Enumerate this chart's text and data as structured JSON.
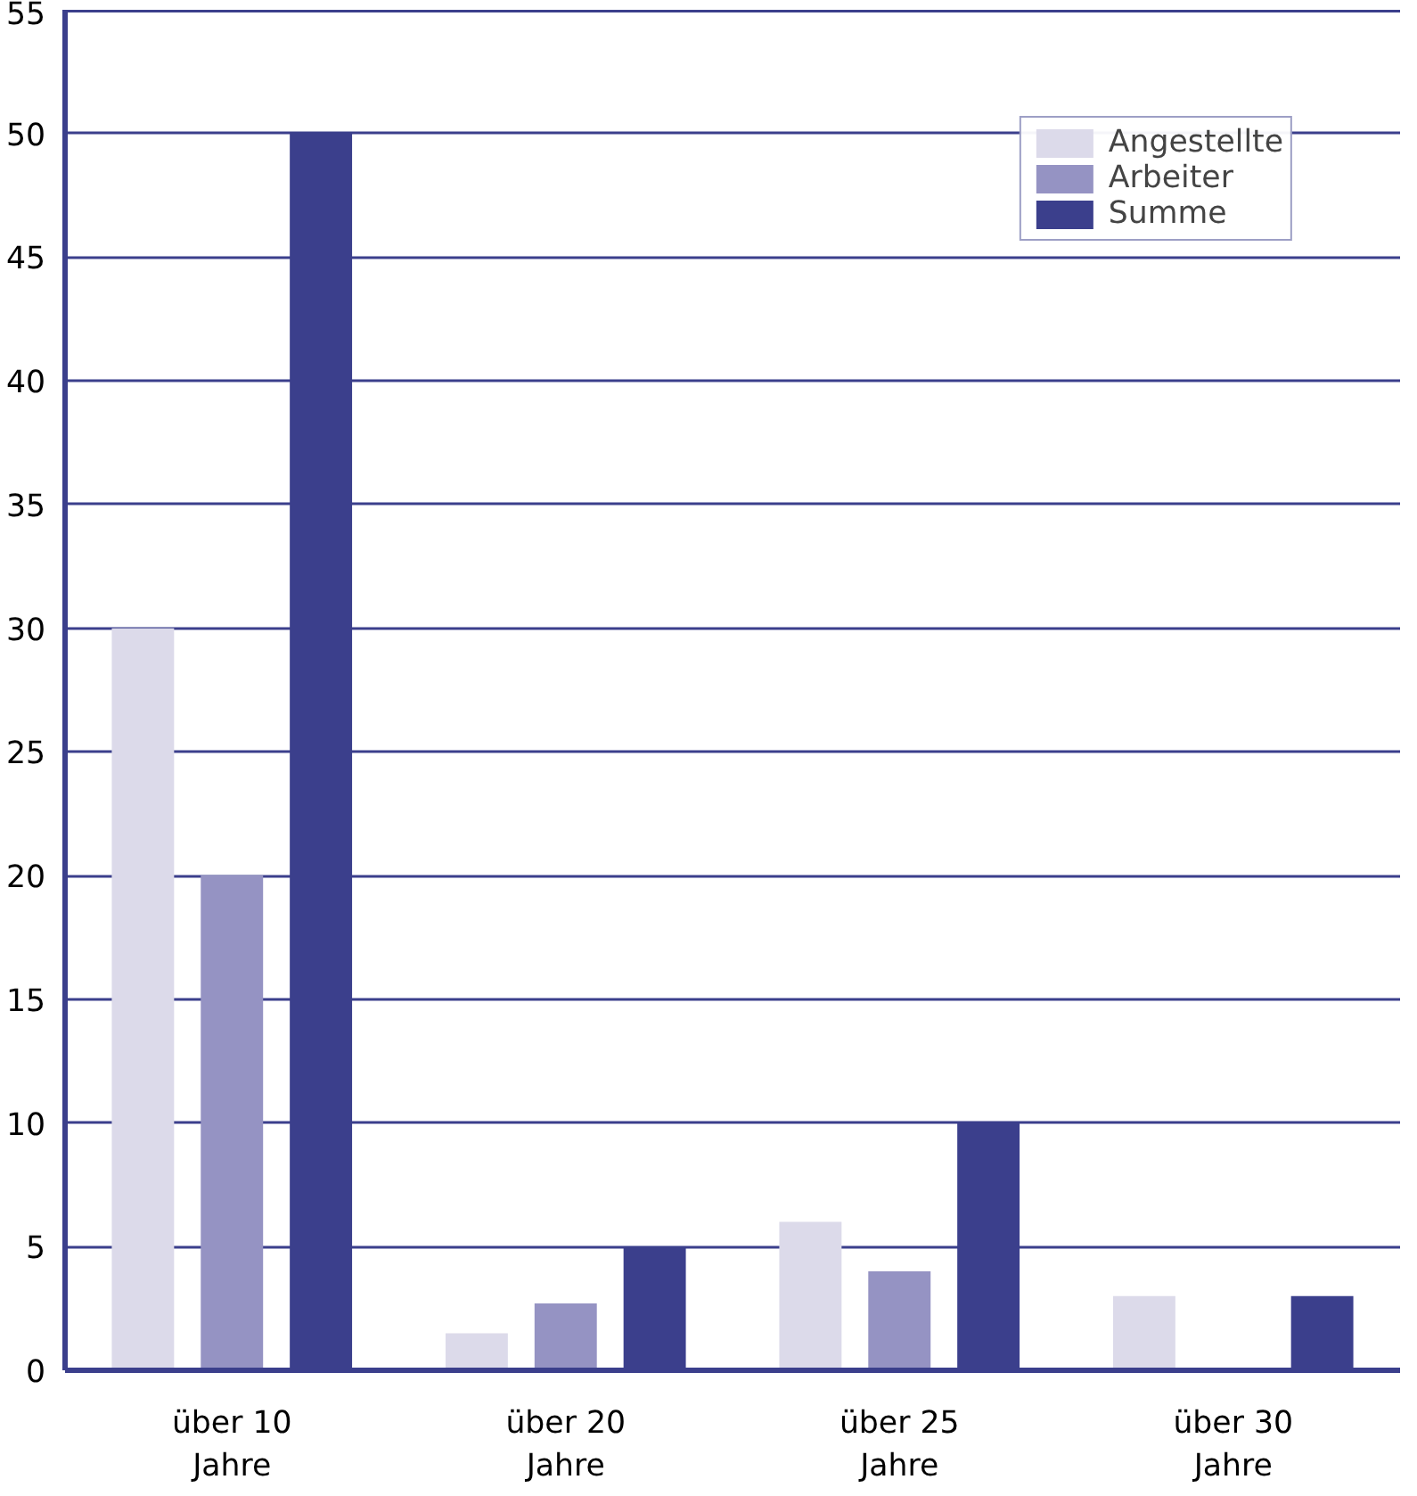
{
  "chart_data": {
    "type": "bar",
    "categories": [
      "über 10\nJahre",
      "über 20\nJahre",
      "über 25\nJahre",
      "über 30\nJahre"
    ],
    "series": [
      {
        "name": "Angestellte",
        "color": "#dcdaea",
        "values": [
          30,
          1.5,
          6,
          3
        ]
      },
      {
        "name": "Arbeiter",
        "color": "#9593c3",
        "values": [
          20,
          2.7,
          4,
          0
        ]
      },
      {
        "name": "Summe",
        "color": "#3b3f8c",
        "values": [
          50,
          5,
          10,
          3
        ]
      }
    ],
    "ylim": [
      0,
      55
    ],
    "yticks": [
      0,
      5,
      10,
      15,
      20,
      25,
      30,
      35,
      40,
      45,
      50,
      55
    ],
    "grid": "y",
    "legend": "top right"
  }
}
